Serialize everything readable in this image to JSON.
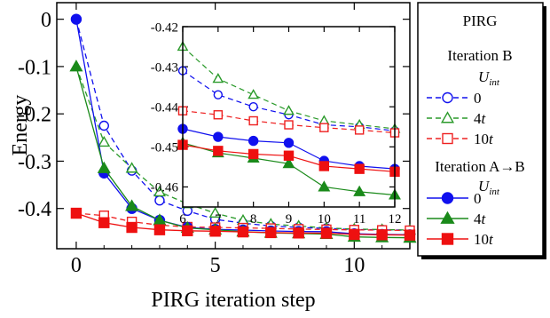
{
  "chart_data": [
    {
      "type": "line",
      "role": "main",
      "xlabel": "PIRG iteration step",
      "ylabel": "Energy",
      "xlim": [
        -0.7,
        12
      ],
      "ylim": [
        -0.485,
        0.035
      ],
      "xticks": [
        0,
        5,
        10
      ],
      "yticks": [
        0,
        -0.1,
        -0.2,
        -0.3,
        -0.4
      ],
      "ytick_labels": [
        "0",
        "-0.1",
        "-0.2",
        "-0.3",
        "-0.4"
      ],
      "xtick_labels": [
        "0",
        "5",
        "10"
      ],
      "series": [
        {
          "key": "b0",
          "name": "0",
          "group": "Iteration B",
          "color": "#1010ee",
          "marker": "circle",
          "filled": false,
          "dashed": true,
          "x": [
            0,
            1,
            2,
            3,
            4,
            5,
            6,
            7,
            8,
            9,
            10,
            11,
            12
          ],
          "y": [
            0.0,
            -0.225,
            -0.32,
            -0.383,
            -0.405,
            -0.423,
            -0.431,
            -0.437,
            -0.44,
            -0.442,
            -0.4445,
            -0.445,
            -0.446
          ]
        },
        {
          "key": "b4",
          "name": "4t",
          "group": "Iteration B",
          "color": "#2a9a2a",
          "marker": "triangle",
          "filled": false,
          "dashed": true,
          "x": [
            0,
            1,
            2,
            3,
            4,
            5,
            6,
            7,
            8,
            9,
            10,
            11,
            12
          ],
          "y": [
            -0.1,
            -0.26,
            -0.315,
            -0.365,
            -0.39,
            -0.41,
            -0.425,
            -0.433,
            -0.437,
            -0.441,
            -0.4435,
            -0.4445,
            -0.4455
          ]
        },
        {
          "key": "b10",
          "name": "10t",
          "group": "Iteration B",
          "color": "#ee2020",
          "marker": "square",
          "filled": false,
          "dashed": true,
          "x": [
            0,
            1,
            2,
            3,
            4,
            5,
            6,
            7,
            8,
            9,
            10,
            11,
            12
          ],
          "y": [
            -0.41,
            -0.415,
            -0.428,
            -0.435,
            -0.439,
            -0.44,
            -0.441,
            -0.442,
            -0.4435,
            -0.4445,
            -0.4452,
            -0.4458,
            -0.4465
          ]
        },
        {
          "key": "a0",
          "name": "0",
          "group": "Iteration A→B",
          "color": "#1010ee",
          "marker": "circle",
          "filled": true,
          "dashed": false,
          "x": [
            0,
            1,
            2,
            3,
            4,
            5,
            6,
            7,
            8,
            9,
            10,
            11,
            12
          ],
          "y": [
            0.0,
            -0.325,
            -0.4,
            -0.425,
            -0.44,
            -0.444,
            -0.4455,
            -0.4475,
            -0.4485,
            -0.449,
            -0.4535,
            -0.4548,
            -0.4555
          ]
        },
        {
          "key": "a4",
          "name": "4t",
          "group": "Iteration A→B",
          "color": "#1a8a1a",
          "marker": "triangle",
          "filled": true,
          "dashed": false,
          "x": [
            0,
            1,
            2,
            3,
            4,
            5,
            6,
            7,
            8,
            9,
            10,
            11,
            12
          ],
          "y": [
            -0.1,
            -0.315,
            -0.395,
            -0.425,
            -0.441,
            -0.445,
            -0.449,
            -0.4515,
            -0.4528,
            -0.4542,
            -0.46,
            -0.4612,
            -0.462
          ]
        },
        {
          "key": "a10",
          "name": "10t",
          "group": "Iteration A→B",
          "color": "#ee1010",
          "marker": "square",
          "filled": true,
          "dashed": false,
          "x": [
            0,
            1,
            2,
            3,
            4,
            5,
            6,
            7,
            8,
            9,
            10,
            11,
            12
          ],
          "y": [
            -0.41,
            -0.43,
            -0.44,
            -0.445,
            -0.447,
            -0.448,
            -0.4495,
            -0.451,
            -0.4518,
            -0.4522,
            -0.4548,
            -0.4555,
            -0.4562
          ]
        }
      ]
    },
    {
      "type": "line",
      "role": "inset",
      "xlim": [
        6,
        12
      ],
      "ylim": [
        -0.465,
        -0.42
      ],
      "xticks": [
        6,
        7,
        8,
        9,
        10,
        11,
        12
      ],
      "xtick_labels": [
        "6",
        "7",
        "8",
        "9",
        "10",
        "11",
        "12"
      ],
      "yticks": [
        -0.42,
        -0.43,
        -0.44,
        -0.45,
        -0.46
      ],
      "ytick_labels": [
        "-0.42",
        "-0.43",
        "-0.44",
        "-0.45",
        "-0.46"
      ],
      "series_ref": "same as main, x 6 to 12"
    }
  ],
  "legend": {
    "title": "PIRG",
    "group_b": "Iteration B",
    "group_ab": "Iteration A→B",
    "uint_main": "U",
    "uint_sub": "int",
    "b_labels": [
      {
        "num": "0",
        "t": ""
      },
      {
        "num": "4",
        "t": "t"
      },
      {
        "num": "10",
        "t": "t"
      }
    ],
    "ab_labels": [
      {
        "num": "0",
        "t": ""
      },
      {
        "num": "4",
        "t": "t"
      },
      {
        "num": "10",
        "t": "t"
      }
    ]
  }
}
